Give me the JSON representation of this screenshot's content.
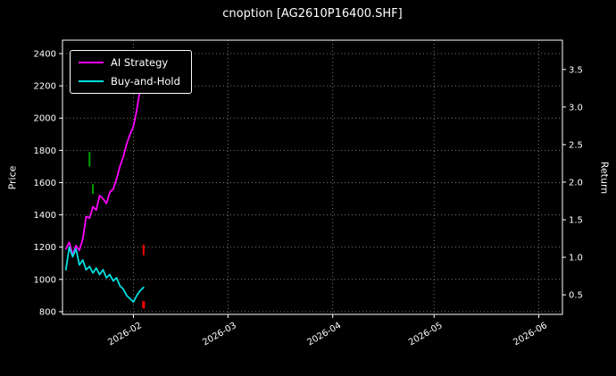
{
  "chart_data": {
    "type": "line",
    "title": "cnoption [AG2610P16400.SHF]",
    "x": [
      "2026-01-12",
      "2026-01-13",
      "2026-01-14",
      "2026-01-15",
      "2026-01-16",
      "2026-01-17",
      "2026-01-18",
      "2026-01-19",
      "2026-01-20",
      "2026-01-21",
      "2026-01-22",
      "2026-01-23",
      "2026-01-24",
      "2026-01-25",
      "2026-01-26",
      "2026-01-27",
      "2026-01-28",
      "2026-01-29",
      "2026-01-30",
      "2026-01-31",
      "2026-02-01",
      "2026-02-02",
      "2026-02-03",
      "2026-02-04"
    ],
    "series": [
      {
        "name": "AI Strategy",
        "color": "#ff00ff",
        "axis": "left",
        "values": [
          1190,
          1230,
          1150,
          1210,
          1180,
          1250,
          1390,
          1380,
          1450,
          1430,
          1520,
          1500,
          1470,
          1540,
          1560,
          1620,
          1700,
          1760,
          1840,
          1900,
          1950,
          2050,
          2180,
          2210
        ]
      },
      {
        "name": "Buy-and-Hold",
        "color": "#00e0e0",
        "axis": "left",
        "values": [
          1060,
          1200,
          1140,
          1190,
          1090,
          1120,
          1060,
          1080,
          1040,
          1070,
          1030,
          1060,
          1010,
          1030,
          990,
          1010,
          960,
          940,
          900,
          880,
          860,
          900,
          930,
          950
        ]
      }
    ],
    "markers": [
      {
        "date": "2026-01-19",
        "from": 1700,
        "to": 1790,
        "color": "#00a000",
        "width": 2
      },
      {
        "date": "2026-01-20",
        "from": 1530,
        "to": 1590,
        "color": "#00a000",
        "width": 2
      },
      {
        "date": "2026-02-04",
        "from": 1150,
        "to": 1215,
        "color": "#ff0000",
        "width": 2
      },
      {
        "date": "2026-02-04",
        "from": 820,
        "to": 865,
        "color": "#ff0000",
        "width": 3
      }
    ],
    "x_axis": {
      "range": [
        "2026-01-11",
        "2026-06-08"
      ],
      "ticks": [
        "2026-02-01",
        "2026-03-01",
        "2026-04-01",
        "2026-05-01",
        "2026-06-01"
      ],
      "tick_labels": [
        "2026-02",
        "2026-03",
        "2026-04",
        "2026-05",
        "2026-06"
      ]
    },
    "y_axis_left": {
      "label": "Price",
      "ticks": [
        800,
        1000,
        1200,
        1400,
        1600,
        1800,
        2000,
        2200,
        2400
      ],
      "range": [
        783,
        2483
      ]
    },
    "y_axis_right": {
      "label": "Return",
      "ticks": [
        0.5,
        1.0,
        1.5,
        2.0,
        2.5,
        3.0,
        3.5
      ],
      "range": [
        0.24,
        3.89
      ]
    },
    "grid": {
      "on": true,
      "style": "dotted"
    },
    "legend_position": "upper left",
    "colors": {
      "background": "#000000",
      "text": "#ffffff",
      "grid": "#7a7a7a",
      "axes": "#ffffff"
    }
  }
}
